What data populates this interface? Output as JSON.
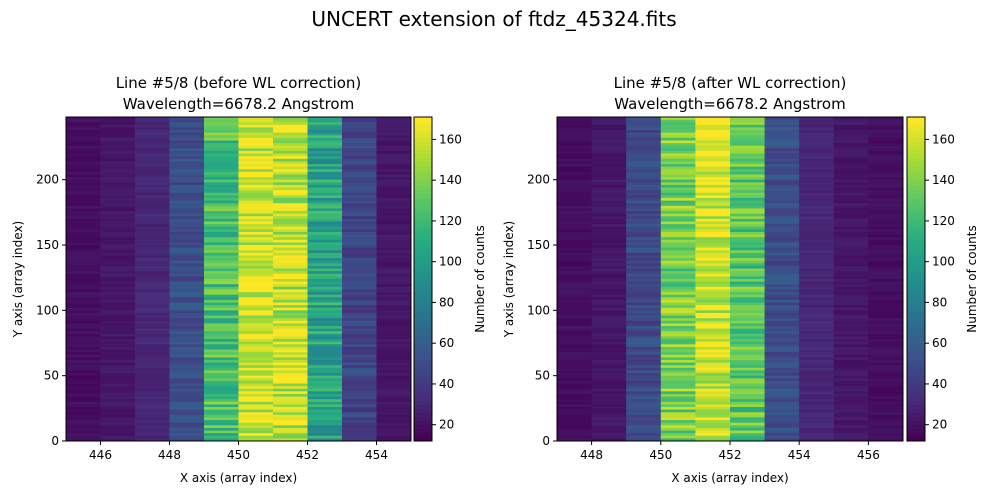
{
  "figure_title": "UNCERT extension of ftdz_45324.fits",
  "chart_data": [
    {
      "type": "heatmap",
      "title_line1": "Line #5/8 (before WL correction)",
      "title_line2": "Wavelength=6678.2 Angstrom",
      "xlabel": "X axis (array index)",
      "ylabel": "Y axis (array index)",
      "xlim": [
        445,
        455
      ],
      "ylim": [
        0,
        248
      ],
      "xticks": [
        446,
        448,
        450,
        452,
        454
      ],
      "yticks": [
        0,
        50,
        100,
        150,
        200
      ],
      "column_centers": [
        445.5,
        446.5,
        447.5,
        448.5,
        449.5,
        450.5,
        451.5,
        452.5,
        453.5,
        454.5
      ],
      "column_values": [
        18,
        22,
        30,
        50,
        125,
        160,
        155,
        105,
        45,
        22
      ],
      "colorbar": {
        "label": "Number of counts",
        "range": [
          12,
          171
        ],
        "ticks": [
          20,
          40,
          60,
          80,
          100,
          120,
          140,
          160
        ]
      }
    },
    {
      "type": "heatmap",
      "title_line1": "Line #5/8 (after WL correction)",
      "title_line2": "Wavelength=6678.2 Angstrom",
      "xlabel": "X axis (array index)",
      "ylabel": "Y axis (array index)",
      "xlim": [
        447,
        457
      ],
      "ylim": [
        0,
        248
      ],
      "xticks": [
        448,
        450,
        452,
        454,
        456
      ],
      "yticks": [
        0,
        50,
        100,
        150,
        200
      ],
      "column_centers": [
        447.5,
        448.5,
        449.5,
        450.5,
        451.5,
        452.5,
        453.5,
        454.5,
        455.5,
        456.5
      ],
      "column_values": [
        18,
        22,
        48,
        138,
        160,
        130,
        50,
        30,
        22,
        18
      ],
      "colorbar": {
        "label": "Number of counts",
        "range": [
          12,
          171
        ],
        "ticks": [
          20,
          40,
          60,
          80,
          100,
          120,
          140,
          160
        ]
      }
    }
  ]
}
